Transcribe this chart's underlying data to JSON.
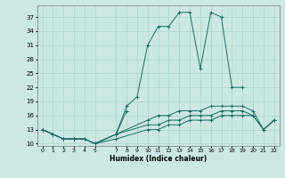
{
  "title": "",
  "xlabel": "Humidex (Indice chaleur)",
  "bg_color": "#cce8e4",
  "grid_color": "#aad4ce",
  "line_color": "#1a6e64",
  "xlim": [
    -0.5,
    22.5
  ],
  "ylim": [
    9.5,
    39.5
  ],
  "yticks": [
    10,
    13,
    16,
    19,
    22,
    25,
    28,
    31,
    34,
    37
  ],
  "xticks": [
    0,
    1,
    2,
    3,
    4,
    5,
    7,
    8,
    9,
    10,
    11,
    12,
    13,
    14,
    15,
    16,
    17,
    18,
    19,
    20,
    21,
    22
  ],
  "xtick_labels": [
    "0",
    "1",
    "2",
    "3",
    "4",
    "5",
    "7",
    "8",
    "9",
    "10",
    "11",
    "12",
    "13",
    "14",
    "15",
    "16",
    "17",
    "18",
    "19",
    "20",
    "21",
    "22"
  ],
  "series": [
    {
      "x": [
        0,
        1,
        2,
        3,
        4,
        5,
        7,
        8,
        9,
        10,
        11,
        12,
        13,
        14,
        15,
        16,
        17,
        18,
        19
      ],
      "y": [
        13,
        12,
        11,
        11,
        11,
        10,
        12,
        18,
        20,
        31,
        35,
        35,
        38,
        38,
        26,
        38,
        37,
        22,
        22
      ]
    },
    {
      "x": [
        7,
        8
      ],
      "y": [
        12,
        17
      ]
    },
    {
      "x": [
        0,
        1,
        2,
        3,
        4,
        5,
        7,
        10,
        11,
        12,
        13,
        14,
        15,
        16,
        17,
        18,
        19,
        20,
        21,
        22
      ],
      "y": [
        13,
        12,
        11,
        11,
        11,
        10,
        12,
        15,
        16,
        16,
        17,
        17,
        17,
        18,
        18,
        18,
        18,
        17,
        13,
        15
      ]
    },
    {
      "x": [
        0,
        1,
        2,
        3,
        4,
        5,
        7,
        10,
        11,
        12,
        13,
        14,
        15,
        16,
        17,
        18,
        19,
        20,
        21,
        22
      ],
      "y": [
        13,
        12,
        11,
        11,
        11,
        10,
        12,
        14,
        14,
        15,
        15,
        16,
        16,
        16,
        17,
        17,
        17,
        16,
        13,
        15
      ]
    },
    {
      "x": [
        0,
        1,
        2,
        3,
        4,
        5,
        7,
        10,
        11,
        12,
        13,
        14,
        15,
        16,
        17,
        18,
        19,
        20,
        21,
        22
      ],
      "y": [
        13,
        12,
        11,
        11,
        11,
        10,
        11,
        13,
        13,
        14,
        14,
        15,
        15,
        15,
        16,
        16,
        16,
        16,
        13,
        15
      ]
    }
  ]
}
